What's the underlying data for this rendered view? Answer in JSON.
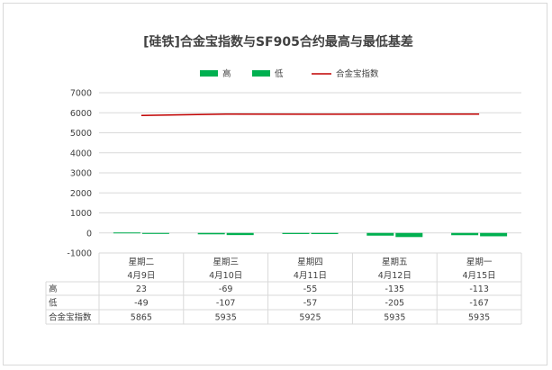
{
  "chart_data": {
    "type": "bar",
    "title": "[硅铁]合金宝指数与SF905合约最高与最低基差",
    "categories": [
      {
        "day": "星期二",
        "date": "4月9日"
      },
      {
        "day": "星期三",
        "date": "4月10日"
      },
      {
        "day": "星期四",
        "date": "4月11日"
      },
      {
        "day": "星期五",
        "date": "4月12日"
      },
      {
        "day": "星期一",
        "date": "4月15日"
      }
    ],
    "series": [
      {
        "name": "高",
        "kind": "bar",
        "color": "#00b050",
        "values": [
          23,
          -69,
          -55,
          -135,
          -113
        ]
      },
      {
        "name": "低",
        "kind": "bar",
        "color": "#00b050",
        "values": [
          -49,
          -107,
          -57,
          -205,
          -167
        ]
      },
      {
        "name": "合金宝指数",
        "kind": "line",
        "color": "#c00000",
        "values": [
          5865,
          5935,
          5925,
          5935,
          5935
        ]
      }
    ],
    "ylim": [
      -1000,
      7000
    ],
    "yticks": [
      7000,
      6000,
      5000,
      4000,
      3000,
      2000,
      1000,
      0,
      -1000
    ],
    "grid": true,
    "legend_position": "top"
  }
}
